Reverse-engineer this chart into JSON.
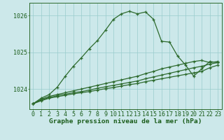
{
  "title": "Graphe pression niveau de la mer (hPa)",
  "hours": [
    0,
    1,
    2,
    3,
    4,
    5,
    6,
    7,
    8,
    9,
    10,
    11,
    12,
    13,
    14,
    15,
    16,
    17,
    18,
    19,
    20,
    21,
    22,
    23
  ],
  "main_line": [
    1023.6,
    1023.75,
    1023.85,
    1024.05,
    1024.35,
    1024.62,
    1024.85,
    1025.1,
    1025.32,
    1025.6,
    1025.9,
    1026.05,
    1026.12,
    1026.05,
    1026.1,
    1025.9,
    1025.3,
    1025.28,
    1024.9,
    1024.65,
    1024.35,
    1024.55,
    1024.75,
    1024.72
  ],
  "env1_line": [
    1023.6,
    1023.72,
    1023.8,
    1023.85,
    1023.9,
    1023.95,
    1024.0,
    1024.05,
    1024.1,
    1024.15,
    1024.2,
    1024.25,
    1024.3,
    1024.35,
    1024.42,
    1024.48,
    1024.55,
    1024.6,
    1024.65,
    1024.7,
    1024.75,
    1024.78,
    1024.72,
    1024.75
  ],
  "env2_line": [
    1023.6,
    1023.7,
    1023.77,
    1023.82,
    1023.86,
    1023.9,
    1023.93,
    1023.97,
    1024.02,
    1024.06,
    1024.1,
    1024.14,
    1024.18,
    1024.22,
    1024.28,
    1024.33,
    1024.38,
    1024.43,
    1024.48,
    1024.53,
    1024.58,
    1024.62,
    1024.68,
    1024.72
  ],
  "env3_line": [
    1023.6,
    1023.68,
    1023.75,
    1023.79,
    1023.83,
    1023.87,
    1023.9,
    1023.93,
    1023.97,
    1024.01,
    1024.04,
    1024.08,
    1024.12,
    1024.15,
    1024.2,
    1024.24,
    1024.28,
    1024.32,
    1024.36,
    1024.4,
    1024.44,
    1024.48,
    1024.58,
    1024.65
  ],
  "line_color": "#2d6a2d",
  "bg_color": "#cce8ea",
  "grid_color": "#99cccc",
  "ylim": [
    1023.45,
    1026.35
  ],
  "yticks": [
    1024,
    1025,
    1026
  ],
  "label_color": "#1a5c1a",
  "title_fontsize": 6.8,
  "tick_fontsize": 6.0
}
